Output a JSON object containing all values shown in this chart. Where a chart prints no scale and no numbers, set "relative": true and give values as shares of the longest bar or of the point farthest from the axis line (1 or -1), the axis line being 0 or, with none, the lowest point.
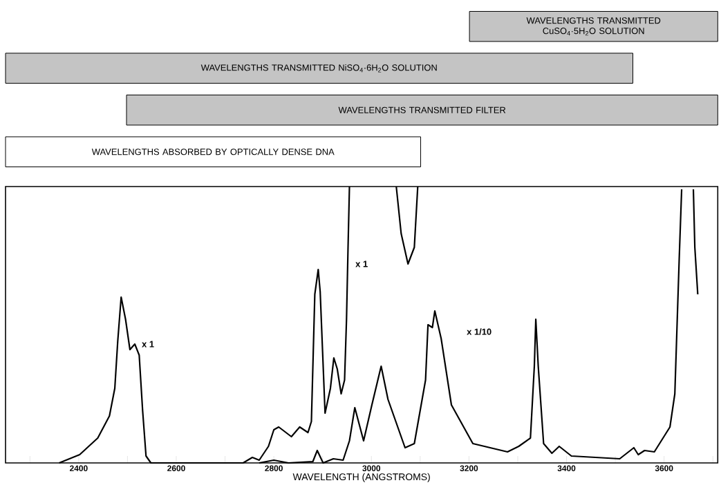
{
  "chart_data": [
    {
      "type": "bar",
      "orientation": "horizontal",
      "xlim": [
        2250,
        3710
      ],
      "categories": [
        "WAVELENGTHS TRANSMITTED CuSO$_{4}$·5H$_{2}$O SOLUTION",
        "WAVELENGTHS TRANSMITTED NiSO$_{4}$·6H$_{2}$O SOLUTION",
        "WAVELENGTHS TRANSMITTED FILTER",
        "WAVELENGTHS ABSORBED BY OPTICALLY DENSE DNA"
      ],
      "base": [
        3201,
        2250,
        2498,
        2250
      ],
      "values": [
        509,
        1286,
        1212,
        851
      ],
      "colors": [
        "#c4c4c4",
        "#c4c4c4",
        "#c4c4c4",
        "#ffffff"
      ]
    },
    {
      "type": "line",
      "relative": true,
      "xlabel": "WAVELENGTH (ANGSTROMS)",
      "xlim": [
        2250,
        3710
      ],
      "xticks": [
        {
          "value": 2300,
          "label": null
        },
        2400,
        {
          "value": 2500,
          "label": null
        },
        2600,
        {
          "value": 2700,
          "label": null
        },
        2800,
        {
          "value": 2900,
          "label": null
        },
        3000,
        {
          "value": 3100,
          "label": null
        },
        3200,
        {
          "value": 3300,
          "label": null
        },
        3400,
        {
          "value": 3500,
          "label": null
        },
        3600,
        {
          "value": 3700,
          "label": null
        }
      ],
      "series": [
        {
          "color": "#000000",
          "x": [
            2360,
            2402,
            2439,
            2463,
            2474,
            2480,
            2487,
            2496,
            2505,
            2515,
            2524,
            2531,
            2538,
            2548,
            2737,
            2756,
            2770,
            2789,
            2800,
            2810,
            2836,
            2853,
            2870,
            2877,
            2884,
            2891,
            2895,
            2905,
            2916,
            2923,
            2930,
            2938,
            2945,
            2949,
            2952,
            2955,
            3000,
            3051,
            3061,
            3075,
            3088,
            3095
          ],
          "values": [
            0,
            0.03,
            0.09,
            0.17,
            0.27,
            0.44,
            0.6,
            0.52,
            0.41,
            0.43,
            0.39,
            0.19,
            0.025,
            0,
            0,
            0.02,
            0.01,
            0.06,
            0.12,
            0.13,
            0.095,
            0.13,
            0.11,
            0.15,
            0.61,
            0.7,
            0.62,
            0.18,
            0.27,
            0.38,
            0.34,
            0.25,
            0.3,
            0.52,
            0.77,
            1.0,
            null,
            1.0,
            0.83,
            0.72,
            0.78,
            1.0
          ]
        },
        {
          "color": "#000000",
          "x": [
            2770,
            2800,
            2830,
            2880,
            2889,
            2901,
            2922,
            2942,
            2955,
            2966,
            2984,
            3001,
            3020,
            3034,
            3069,
            3088,
            3111,
            3116,
            3125,
            3130,
            3143,
            3164,
            3208,
            3279,
            3302,
            3326,
            3334,
            3337,
            3342,
            3353,
            3370,
            3385,
            3410,
            3509,
            3538,
            3547,
            3560,
            3580,
            3612,
            3622,
            3631,
            3636,
            3648,
            3660,
            3663,
            3669
          ],
          "values": [
            0,
            0.01,
            0,
            0.005,
            0.045,
            0,
            0.015,
            0.01,
            0.08,
            0.2,
            0.08,
            0.21,
            0.35,
            0.23,
            0.055,
            0.07,
            0.3,
            0.5,
            0.49,
            0.55,
            0.45,
            0.21,
            0.07,
            0.04,
            0.06,
            0.09,
            0.35,
            0.52,
            0.35,
            0.07,
            0.035,
            0.06,
            0.025,
            0.015,
            0.055,
            0.03,
            0.045,
            0.04,
            0.13,
            0.25,
            0.74,
            0.99,
            null,
            0.99,
            0.78,
            0.61
          ]
        }
      ],
      "annotations": [
        "x 1",
        "x 1",
        "x 1/10"
      ]
    }
  ]
}
